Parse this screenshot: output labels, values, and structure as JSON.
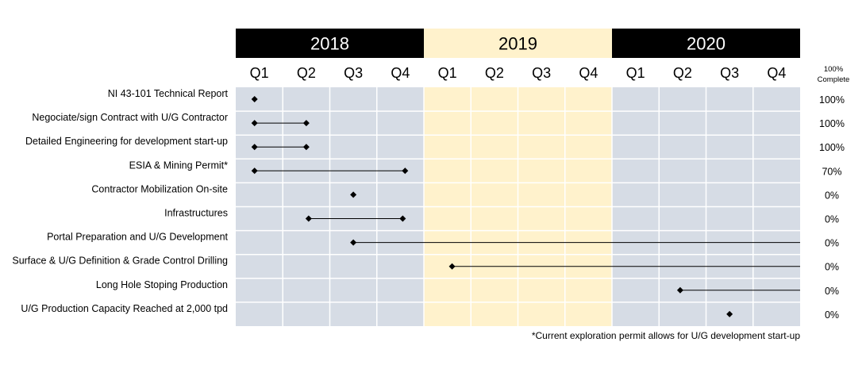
{
  "chart_data": {
    "type": "gantt",
    "years": [
      {
        "label": "2018",
        "header_color": "#000000",
        "text_color": "#ffffff",
        "body_color": "#d6dce5"
      },
      {
        "label": "2019",
        "header_color": "#fff2cc",
        "text_color": "#000000",
        "body_color": "#fff2cc"
      },
      {
        "label": "2020",
        "header_color": "#000000",
        "text_color": "#ffffff",
        "body_color": "#d6dce5"
      }
    ],
    "quarters": [
      "Q1",
      "Q2",
      "Q3",
      "Q4",
      "Q1",
      "Q2",
      "Q3",
      "Q4",
      "Q1",
      "Q2",
      "Q3",
      "Q4"
    ],
    "completion_header": [
      "100%",
      "Complete"
    ],
    "tasks": [
      {
        "name": "NI 43-101 Technical Report",
        "start": 0.4,
        "end": null,
        "complete": "100%"
      },
      {
        "name": "Negociate/sign Contract with U/G Contractor",
        "start": 0.4,
        "end": 1.5,
        "complete": "100%"
      },
      {
        "name": "Detailed Engineering for development start-up",
        "start": 0.4,
        "end": 1.5,
        "complete": "100%"
      },
      {
        "name": "ESIA & Mining Permit*",
        "start": 0.4,
        "end": 3.6,
        "complete": "70%"
      },
      {
        "name": "Contractor Mobilization On-site",
        "start": 2.5,
        "end": null,
        "complete": "0%"
      },
      {
        "name": "Infrastructures",
        "start": 1.55,
        "end": 3.55,
        "complete": "0%"
      },
      {
        "name": "Portal Preparation and U/G Development",
        "start": 2.5,
        "end": 12,
        "complete": "0%"
      },
      {
        "name": "Surface & U/G Definition & Grade Control Drilling",
        "start": 4.6,
        "end": 12,
        "complete": "0%"
      },
      {
        "name": "Long Hole Stoping Production",
        "start": 9.45,
        "end": 12,
        "complete": "0%"
      },
      {
        "name": "U/G Production Capacity Reached at 2,000 tpd",
        "start": 10.5,
        "end": null,
        "complete": "0%"
      }
    ],
    "footnote": "*Current exploration permit allows for U/G development  start-up"
  }
}
